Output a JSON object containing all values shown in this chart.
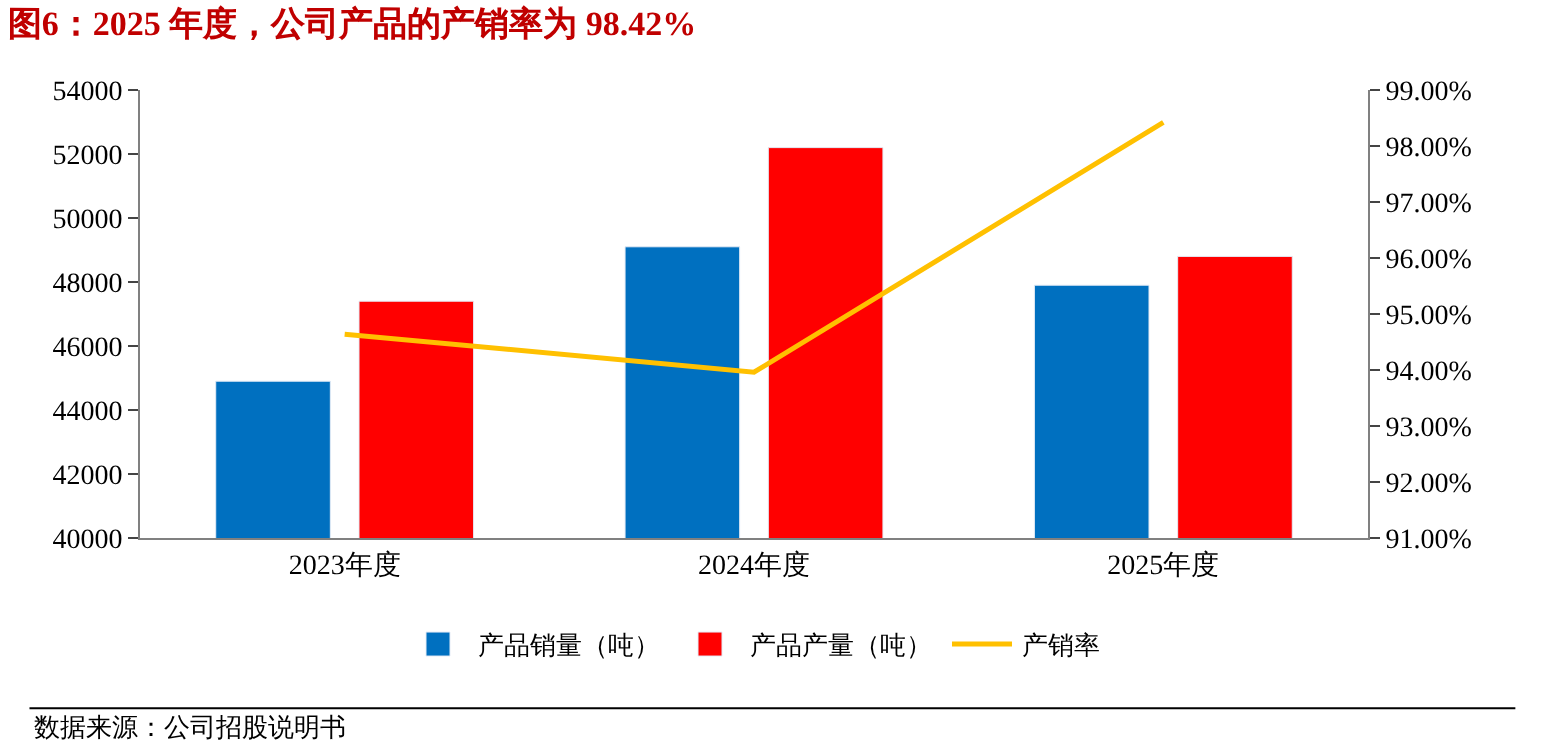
{
  "chart_data": {
    "type": "bar",
    "title": "图6：2025 年度，公司产品的产销率为 98.42%",
    "categories": [
      "2023年度",
      "2024年度",
      "2025年度"
    ],
    "series": [
      {
        "name": "产品销量（吨）",
        "color": "#0070c0",
        "values": [
          44900,
          49100,
          47900
        ]
      },
      {
        "name": "产品产量（吨）",
        "color": "#ff0000",
        "values": [
          47400,
          52200,
          48800
        ]
      },
      {
        "name": "产销率",
        "color": "#ffc000",
        "type": "line",
        "axis": "y2",
        "values": [
          94.64,
          93.96,
          98.42
        ]
      }
    ],
    "ylim": [
      40000,
      54000
    ],
    "yticks": [
      40000,
      42000,
      44000,
      46000,
      48000,
      50000,
      52000,
      54000
    ],
    "y2lim": [
      91,
      99
    ],
    "y2ticks": [
      {
        "value": 91,
        "label": "91.00%"
      },
      {
        "value": 92,
        "label": "92.00%"
      },
      {
        "value": 93,
        "label": "93.00%"
      },
      {
        "value": 94,
        "label": "94.00%"
      },
      {
        "value": 95,
        "label": "95.00%"
      },
      {
        "value": 96,
        "label": "96.00%"
      },
      {
        "value": 97,
        "label": "97.00%"
      },
      {
        "value": 98,
        "label": "98.00%"
      },
      {
        "value": 99,
        "label": "99.00%"
      }
    ],
    "legend": "bottom",
    "marker": "none",
    "line_style": "solid",
    "annotations": [
      "数据来源：公司招股说明书"
    ]
  }
}
